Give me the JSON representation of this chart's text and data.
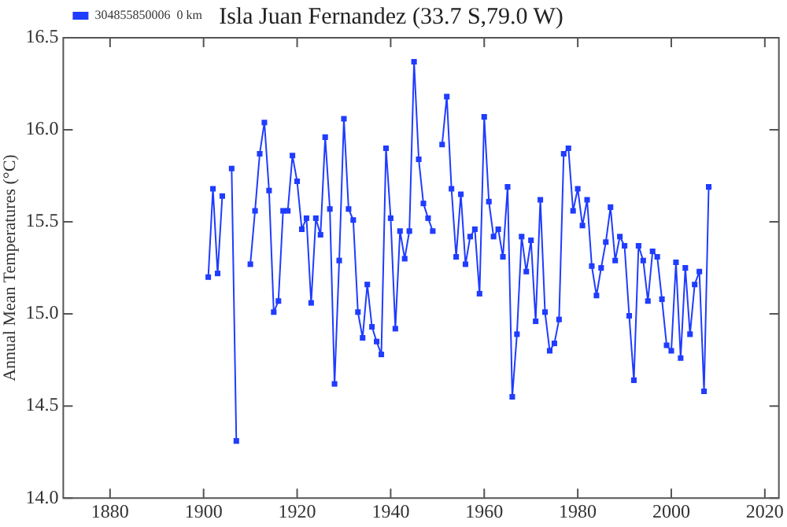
{
  "chart_data": {
    "type": "line",
    "title": "Isla Juan Fernandez (33.7 S,79.0 W)",
    "ylabel": "Annual Mean Temperatures (°C)",
    "x": [
      1901,
      1902,
      1903,
      1904,
      1905,
      1906,
      1907,
      1908,
      1909,
      1910,
      1911,
      1912,
      1913,
      1914,
      1915,
      1916,
      1917,
      1918,
      1919,
      1920,
      1921,
      1922,
      1923,
      1924,
      1925,
      1926,
      1927,
      1928,
      1929,
      1930,
      1931,
      1932,
      1933,
      1934,
      1935,
      1936,
      1937,
      1938,
      1939,
      1940,
      1941,
      1942,
      1943,
      1944,
      1945,
      1946,
      1947,
      1948,
      1949,
      1950,
      1951,
      1952,
      1953,
      1954,
      1955,
      1956,
      1957,
      1958,
      1959,
      1960,
      1961,
      1962,
      1963,
      1964,
      1965,
      1966,
      1967,
      1968,
      1969,
      1970,
      1971,
      1972,
      1973,
      1974,
      1975,
      1976,
      1977,
      1978,
      1979,
      1980,
      1981,
      1982,
      1983,
      1984,
      1985,
      1986,
      1987,
      1988,
      1989,
      1990,
      1991,
      1992,
      1993,
      1994,
      1995,
      1996,
      1997,
      1998,
      1999,
      2000,
      2001,
      2002,
      2003,
      2004,
      2005,
      2006,
      2007,
      2008
    ],
    "series": [
      {
        "name": "304855850006  0 km",
        "color": "#1f3cff",
        "values": [
          15.2,
          15.68,
          15.22,
          15.64,
          null,
          15.79,
          14.31,
          null,
          null,
          15.27,
          15.56,
          15.87,
          16.04,
          15.67,
          15.01,
          15.07,
          15.56,
          15.56,
          15.86,
          15.72,
          15.46,
          15.52,
          15.06,
          15.52,
          15.43,
          15.96,
          15.57,
          14.62,
          15.29,
          16.06,
          15.57,
          15.51,
          15.01,
          14.87,
          15.16,
          14.93,
          14.85,
          14.78,
          15.9,
          15.52,
          14.92,
          15.45,
          15.3,
          15.45,
          16.37,
          15.84,
          15.6,
          15.52,
          15.45,
          null,
          15.92,
          16.18,
          15.68,
          15.31,
          15.65,
          15.27,
          15.42,
          15.46,
          15.11,
          16.07,
          15.61,
          15.42,
          15.46,
          15.31,
          15.69,
          14.55,
          14.89,
          15.42,
          15.23,
          15.4,
          14.96,
          15.62,
          15.01,
          14.8,
          14.84,
          14.97,
          15.87,
          15.9,
          15.56,
          15.68,
          15.48,
          15.62,
          15.26,
          15.1,
          15.25,
          15.39,
          15.58,
          15.29,
          15.42,
          15.37,
          14.99,
          14.64,
          15.37,
          15.29,
          15.07,
          15.34,
          15.31,
          15.08,
          14.83,
          14.8,
          15.28,
          14.76,
          15.25,
          14.89,
          15.16,
          15.23,
          14.58,
          15.69
        ]
      }
    ],
    "xlim": [
      1870,
      2023
    ],
    "xticks": [
      1880,
      1900,
      1920,
      1940,
      1960,
      1980,
      2000,
      2020
    ],
    "ylim": [
      14,
      16.5
    ],
    "yticks": [
      {
        "value": 14,
        "label": "14.0"
      },
      14.5,
      {
        "value": 15,
        "label": "15.0"
      },
      15.5,
      {
        "value": 16,
        "label": "16.0"
      },
      16.5
    ],
    "grid": false,
    "legend": "top left",
    "marker": "square",
    "line_style": "solid"
  }
}
